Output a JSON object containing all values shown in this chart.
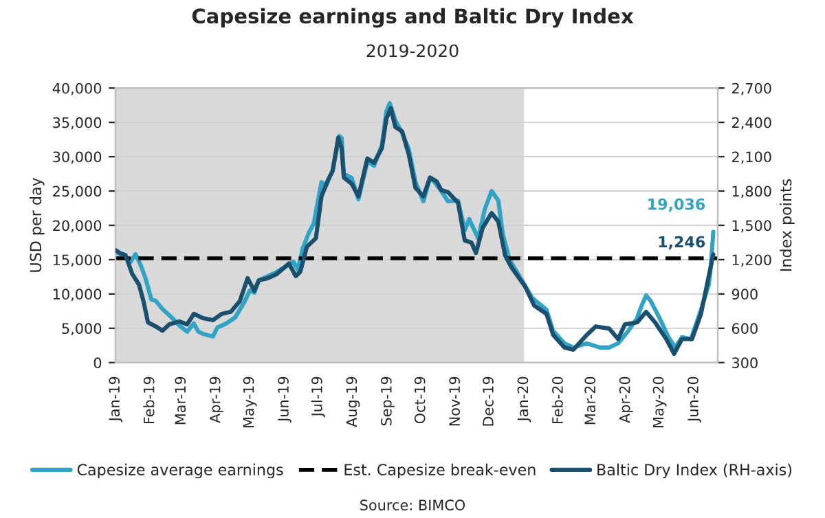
{
  "chart_data": {
    "type": "line",
    "title": "Capesize earnings and Baltic Dry Index",
    "subtitle": "2019-2020",
    "ylabel": "USD per day",
    "y2label": "Index points",
    "annotations": [
      "Source: BIMCO"
    ],
    "xlim": [
      "2019-01-01",
      "2020-06-22"
    ],
    "xticks": [
      {
        "value": "2019-01-01",
        "label": "Jan-19"
      },
      {
        "value": "2019-02-01",
        "label": "Feb-19"
      },
      {
        "value": "2019-03-01",
        "label": "Mar-19"
      },
      {
        "value": "2019-04-01",
        "label": "Apr-19"
      },
      {
        "value": "2019-05-01",
        "label": "May-19"
      },
      {
        "value": "2019-06-01",
        "label": "Jun-19"
      },
      {
        "value": "2019-07-01",
        "label": "Jul-19"
      },
      {
        "value": "2019-08-01",
        "label": "Aug-19"
      },
      {
        "value": "2019-09-01",
        "label": "Sep-19"
      },
      {
        "value": "2019-10-01",
        "label": "Oct-19"
      },
      {
        "value": "2019-11-01",
        "label": "Nov-19"
      },
      {
        "value": "2019-12-01",
        "label": "Dec-19"
      },
      {
        "value": "2020-01-01",
        "label": "Jan-20"
      },
      {
        "value": "2020-02-01",
        "label": "Feb-20"
      },
      {
        "value": "2020-03-01",
        "label": "Mar-20"
      },
      {
        "value": "2020-04-01",
        "label": "Apr-20"
      },
      {
        "value": "2020-05-01",
        "label": "May-20"
      },
      {
        "value": "2020-06-01",
        "label": "Jun-20"
      }
    ],
    "ylim": [
      0,
      40000
    ],
    "yticks": [
      0,
      {
        "value": 5000,
        "label": "5,000"
      },
      {
        "value": 10000,
        "label": "10,000"
      },
      {
        "value": 15000,
        "label": "15,000"
      },
      {
        "value": 20000,
        "label": "20,000"
      },
      {
        "value": 25000,
        "label": "25,000"
      },
      {
        "value": 30000,
        "label": "30,000"
      },
      {
        "value": 35000,
        "label": "35,000"
      },
      {
        "value": 40000,
        "label": "40,000"
      }
    ],
    "y2lim": [
      300,
      2700
    ],
    "y2ticks": [
      300,
      600,
      900,
      {
        "value": 1200,
        "label": "1,200"
      },
      {
        "value": 1500,
        "label": "1,500"
      },
      {
        "value": 1800,
        "label": "1,800"
      },
      {
        "value": 2100,
        "label": "2,100"
      },
      {
        "value": 2400,
        "label": "2,400"
      },
      {
        "value": 2700,
        "label": "2,700"
      }
    ],
    "grid": "y",
    "legend": "bottom",
    "bands": [
      {
        "axis": "x",
        "from": "2019-01-01",
        "to": "2020-01-01",
        "color": "#d9d9d9"
      }
    ],
    "ref_lines": [
      {
        "axis": "y",
        "value": 15200,
        "label": "Est. Capesize break-even",
        "color": "#000000",
        "line_style": "dashed"
      }
    ],
    "series": [
      {
        "name": "Capesize average earnings",
        "color": "#31a3c4",
        "x": [
          "2019-01-01",
          "2019-01-08",
          "2019-01-14",
          "2019-01-19",
          "2019-01-24",
          "2019-01-28",
          "2019-02-02",
          "2019-02-06",
          "2019-02-12",
          "2019-02-20",
          "2019-02-27",
          "2019-03-06",
          "2019-03-12",
          "2019-03-16",
          "2019-03-20",
          "2019-03-29",
          "2019-04-02",
          "2019-04-10",
          "2019-04-18",
          "2019-04-26",
          "2019-05-01",
          "2019-05-05",
          "2019-05-09",
          "2019-05-17",
          "2019-05-25",
          "2019-06-03",
          "2019-06-09",
          "2019-06-13",
          "2019-06-17",
          "2019-06-23",
          "2019-06-27",
          "2019-07-04",
          "2019-07-08",
          "2019-07-14",
          "2019-07-20",
          "2019-07-22",
          "2019-07-24",
          "2019-07-31",
          "2019-08-06",
          "2019-08-14",
          "2019-08-20",
          "2019-08-27",
          "2019-08-31",
          "2019-09-03",
          "2019-09-08",
          "2019-09-14",
          "2019-09-20",
          "2019-09-26",
          "2019-10-03",
          "2019-10-09",
          "2019-10-13",
          "2019-10-19",
          "2019-10-25",
          "2019-11-03",
          "2019-11-09",
          "2019-11-13",
          "2019-11-21",
          "2019-11-27",
          "2019-12-03",
          "2019-12-09",
          "2019-12-13",
          "2019-12-19",
          "2019-12-30",
          "2020-01-08",
          "2020-01-12",
          "2020-01-21",
          "2020-01-27",
          "2020-02-06",
          "2020-02-14",
          "2020-02-26",
          "2020-03-09",
          "2020-03-17",
          "2020-03-25",
          "2020-04-03",
          "2020-04-11",
          "2020-04-15",
          "2020-04-19",
          "2020-04-23",
          "2020-05-01",
          "2020-05-09",
          "2020-05-15",
          "2020-05-21",
          "2020-05-29",
          "2020-06-07",
          "2020-06-14",
          "2020-06-16",
          "2020-06-18"
        ],
        "values": [
          16200,
          15500,
          14600,
          15800,
          14000,
          12200,
          9200,
          9000,
          7800,
          6600,
          5400,
          4500,
          5700,
          4500,
          4200,
          3800,
          5100,
          5700,
          6600,
          8800,
          10500,
          10200,
          12000,
          12600,
          13200,
          14100,
          14700,
          13500,
          16500,
          19000,
          20200,
          26300,
          25700,
          28100,
          33000,
          32700,
          27500,
          26900,
          23800,
          29300,
          28700,
          31700,
          36600,
          37800,
          35300,
          33500,
          31100,
          26300,
          23500,
          26900,
          26300,
          25000,
          23500,
          23600,
          19300,
          20900,
          18100,
          22400,
          25000,
          23600,
          18700,
          15000,
          12000,
          9500,
          8900,
          7700,
          4600,
          2800,
          2200,
          2800,
          2200,
          2200,
          2800,
          4600,
          6500,
          8300,
          9800,
          9000,
          6500,
          3700,
          2200,
          3700,
          3400,
          7700,
          11400,
          14400,
          19036
        ],
        "value_labels": [
          null,
          null,
          null,
          null,
          null,
          null,
          null,
          null,
          null,
          null,
          null,
          null,
          null,
          null,
          null,
          null,
          null,
          null,
          null,
          null,
          null,
          null,
          null,
          null,
          null,
          null,
          null,
          null,
          null,
          null,
          null,
          null,
          null,
          null,
          null,
          null,
          null,
          null,
          null,
          null,
          null,
          null,
          null,
          null,
          null,
          null,
          null,
          null,
          null,
          null,
          null,
          null,
          null,
          null,
          null,
          null,
          null,
          null,
          null,
          null,
          null,
          null,
          null,
          null,
          null,
          null,
          null,
          null,
          null,
          null,
          null,
          null,
          null,
          null,
          null,
          null,
          null,
          null,
          null,
          null,
          null,
          null,
          null,
          null,
          null,
          null,
          "19,036"
        ]
      },
      {
        "name": "Baltic Dry Index (RH-axis)",
        "color": "#1b4f6e",
        "axis": "y2",
        "x": [
          "2019-01-01",
          "2019-01-05",
          "2019-01-10",
          "2019-01-16",
          "2019-01-22",
          "2019-01-26",
          "2019-01-30",
          "2019-02-06",
          "2019-02-12",
          "2019-02-18",
          "2019-02-27",
          "2019-03-06",
          "2019-03-12",
          "2019-03-20",
          "2019-03-29",
          "2019-04-06",
          "2019-04-14",
          "2019-04-22",
          "2019-04-29",
          "2019-05-05",
          "2019-05-09",
          "2019-05-17",
          "2019-05-25",
          "2019-06-05",
          "2019-06-11",
          "2019-06-15",
          "2019-06-21",
          "2019-06-29",
          "2019-07-04",
          "2019-07-10",
          "2019-07-14",
          "2019-07-19",
          "2019-07-22",
          "2019-07-24",
          "2019-07-31",
          "2019-08-06",
          "2019-08-14",
          "2019-08-20",
          "2019-08-27",
          "2019-08-31",
          "2019-09-04",
          "2019-09-08",
          "2019-09-14",
          "2019-09-20",
          "2019-09-26",
          "2019-10-03",
          "2019-10-09",
          "2019-10-15",
          "2019-10-19",
          "2019-10-25",
          "2019-11-03",
          "2019-11-09",
          "2019-11-15",
          "2019-11-19",
          "2019-11-25",
          "2019-12-03",
          "2019-12-09",
          "2019-12-15",
          "2019-12-21",
          "2020-01-02",
          "2020-01-10",
          "2020-01-21",
          "2020-01-27",
          "2020-02-06",
          "2020-02-14",
          "2020-02-26",
          "2020-03-05",
          "2020-03-17",
          "2020-03-25",
          "2020-03-31",
          "2020-04-11",
          "2020-04-19",
          "2020-04-27",
          "2020-05-07",
          "2020-05-14",
          "2020-05-21",
          "2020-05-30",
          "2020-06-07",
          "2020-06-14",
          "2020-06-18"
        ],
        "values": [
          1283,
          1258,
          1239,
          1074,
          982,
          836,
          652,
          616,
          579,
          634,
          660,
          634,
          726,
          689,
          671,
          726,
          744,
          836,
          1038,
          927,
          1019,
          1038,
          1074,
          1166,
          1056,
          1093,
          1313,
          1387,
          1753,
          1900,
          1974,
          2267,
          2175,
          1918,
          1863,
          1753,
          2084,
          2047,
          2175,
          2433,
          2524,
          2359,
          2322,
          2120,
          1827,
          1753,
          1918,
          1882,
          1808,
          1790,
          1698,
          1368,
          1349,
          1258,
          1478,
          1607,
          1533,
          1239,
          1129,
          964,
          799,
          726,
          542,
          432,
          413,
          542,
          616,
          597,
          506,
          634,
          652,
          744,
          652,
          506,
          377,
          506,
          506,
          726,
          1056,
          1246
        ],
        "value_labels": [
          null,
          null,
          null,
          null,
          null,
          null,
          null,
          null,
          null,
          null,
          null,
          null,
          null,
          null,
          null,
          null,
          null,
          null,
          null,
          null,
          null,
          null,
          null,
          null,
          null,
          null,
          null,
          null,
          null,
          null,
          null,
          null,
          null,
          null,
          null,
          null,
          null,
          null,
          null,
          null,
          null,
          null,
          null,
          null,
          null,
          null,
          null,
          null,
          null,
          null,
          null,
          null,
          null,
          null,
          null,
          null,
          null,
          null,
          null,
          null,
          null,
          null,
          null,
          null,
          null,
          null,
          null,
          null,
          null,
          null,
          null,
          null,
          null,
          null,
          null,
          null,
          null,
          null,
          null,
          "1,246"
        ]
      }
    ]
  }
}
